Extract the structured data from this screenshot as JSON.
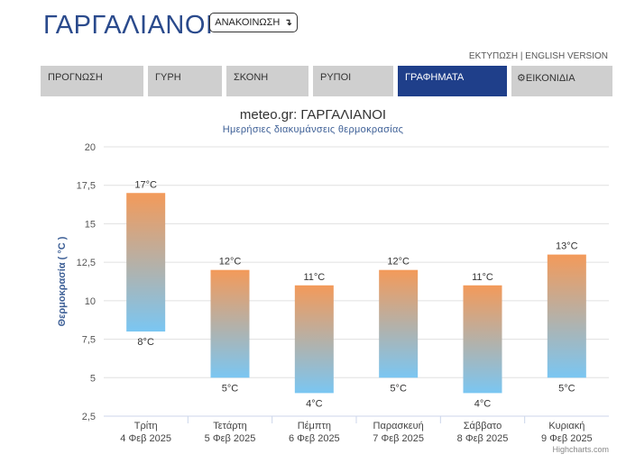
{
  "header": {
    "title": "ΓΑΡΓΑΛΙΑΝΟΙ",
    "announce_label": "ΑΝΑΚΟΙΝΩΣΗ",
    "announce_icon": "arrow-down-icon",
    "print_link": "ΕΚΤΥΠΩΣΗ",
    "separator": "|",
    "english_link": "ENGLISH VERSION"
  },
  "tabs": [
    {
      "label": "ΠΡΟΓΝΩΣΗ",
      "active": false
    },
    {
      "label": "ΓΥΡΗ",
      "active": false
    },
    {
      "label": "ΣΚΟΝΗ",
      "active": false
    },
    {
      "label": "ΡΥΠΟΙ",
      "active": false
    },
    {
      "label": "ΓΡΑΦΗΜΑΤΑ",
      "active": true
    },
    {
      "label": "ΕΙΚΟΝΙΔΙΑ",
      "active": false,
      "icon": "gear-icon"
    }
  ],
  "colors": {
    "accent": "#1f3f8a",
    "tab_inactive": "#cfcfcf",
    "bar_top": "#f39a5a",
    "bar_bottom": "#7ac6f2"
  },
  "chart_data": {
    "type": "bar",
    "subtype": "columnrange",
    "title": "meteo.gr: ΓΑΡΓΑΛΙΑΝΟΙ",
    "subtitle": "Ημερήσιες διακυμάνσεις θερμοκρασίας",
    "ylabel": "Θερμοκρασία ( °C )",
    "ylim": [
      2.5,
      20
    ],
    "yticks": [
      "2,5",
      "5",
      "7,5",
      "10",
      "12,5",
      "15",
      "17,5",
      "20"
    ],
    "grid": true,
    "categories": [
      {
        "day": "Τρίτη",
        "date": "4 Φεβ 2025"
      },
      {
        "day": "Τετάρτη",
        "date": "5 Φεβ 2025"
      },
      {
        "day": "Πέμπτη",
        "date": "6 Φεβ 2025"
      },
      {
        "day": "Παρασκευή",
        "date": "7 Φεβ 2025"
      },
      {
        "day": "Σάββατο",
        "date": "8 Φεβ 2025"
      },
      {
        "day": "Κυριακή",
        "date": "9 Φεβ 2025"
      }
    ],
    "low": [
      8,
      5,
      4,
      5,
      4,
      5
    ],
    "high": [
      17,
      12,
      11,
      12,
      11,
      13
    ],
    "unit": "°C",
    "credit": "Highcharts.com"
  }
}
